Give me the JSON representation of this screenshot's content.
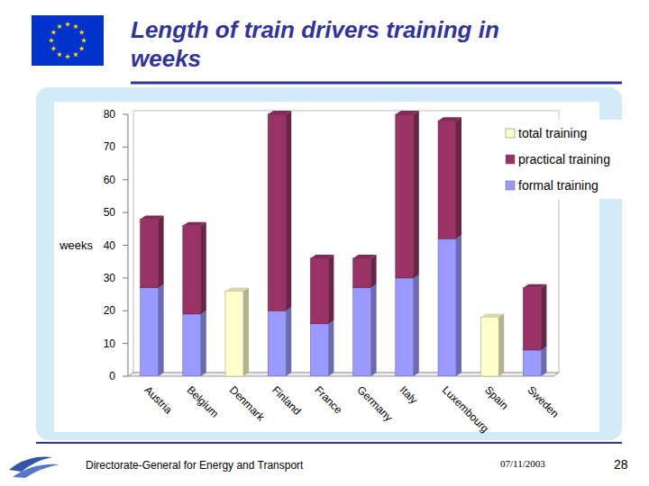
{
  "chart_data": {
    "type": "bar",
    "title": "Length of train drivers training in weeks",
    "y_label": "weeks",
    "categories": [
      "Austria",
      "Belgium",
      "Denmark",
      "Finland",
      "France",
      "Germany",
      "Italy",
      "Luxembourg",
      "Spain",
      "Sweden"
    ],
    "series": [
      {
        "name": "total training",
        "color": "#ffffcc",
        "values": [
          null,
          null,
          26,
          null,
          null,
          null,
          null,
          null,
          18,
          null
        ]
      },
      {
        "name": "practical training",
        "color": "#993366",
        "values": [
          21,
          27,
          null,
          60,
          20,
          9,
          50,
          36,
          null,
          19
        ]
      },
      {
        "name": "formal training",
        "color": "#9999ff",
        "values": [
          27,
          19,
          null,
          20,
          16,
          27,
          30,
          42,
          null,
          8
        ]
      }
    ],
    "stacked": true,
    "grid": false,
    "legend": "top-right",
    "ylim": [
      0,
      80
    ],
    "yticks": [
      0,
      10,
      20,
      30,
      40,
      50,
      60,
      70,
      80
    ]
  },
  "slide": {
    "footer": "Directorate-General for Energy and Transport",
    "date": "07/11/2003",
    "page": "28"
  }
}
